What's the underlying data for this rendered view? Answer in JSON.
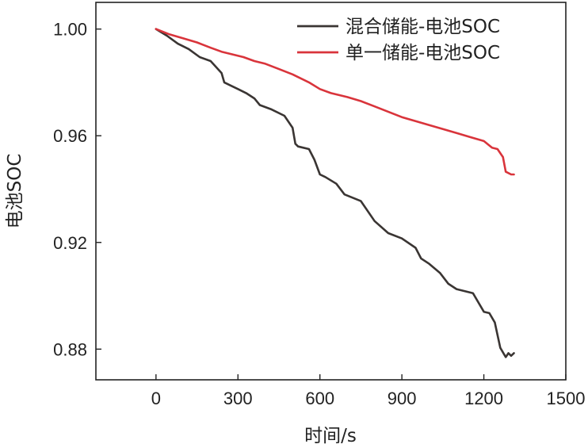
{
  "chart_data": {
    "type": "line",
    "title": "",
    "xlabel": "时间/s",
    "ylabel": "电池SOC",
    "xlim": [
      -220,
      1500
    ],
    "ylim": [
      0.8685,
      1.01
    ],
    "x_ticks": [
      0,
      300,
      600,
      900,
      1200,
      1500
    ],
    "x_tick_labels": [
      "0",
      "300",
      "600",
      "900",
      "1200",
      "1500"
    ],
    "y_ticks": [
      0.88,
      0.92,
      0.96,
      1.0
    ],
    "y_tick_labels": [
      "0.88",
      "0.92",
      "0.96",
      "1.00"
    ],
    "grid": false,
    "legend_position": "top-right",
    "series": [
      {
        "name": "混合储能-电池SOC",
        "color": "#3a3533",
        "x": [
          0,
          40,
          80,
          120,
          160,
          200,
          240,
          250,
          270,
          300,
          330,
          360,
          380,
          420,
          470,
          500,
          510,
          520,
          560,
          580,
          600,
          620,
          660,
          690,
          750,
          800,
          850,
          900,
          950,
          970,
          1000,
          1040,
          1070,
          1100,
          1160,
          1200,
          1220,
          1240,
          1260,
          1280,
          1290,
          1300,
          1310
        ],
        "y": [
          1.0,
          0.9975,
          0.9945,
          0.9925,
          0.9895,
          0.988,
          0.9835,
          0.98,
          0.979,
          0.9775,
          0.976,
          0.974,
          0.9715,
          0.97,
          0.9675,
          0.963,
          0.957,
          0.956,
          0.955,
          0.951,
          0.9455,
          0.9445,
          0.942,
          0.938,
          0.9355,
          0.928,
          0.9235,
          0.9215,
          0.918,
          0.914,
          0.912,
          0.9085,
          0.9045,
          0.9025,
          0.901,
          0.894,
          0.8935,
          0.89,
          0.8805,
          0.877,
          0.8785,
          0.8775,
          0.8785
        ]
      },
      {
        "name": "单一储能-电池SOC",
        "color": "#d9343b",
        "x": [
          0,
          50,
          100,
          150,
          200,
          240,
          280,
          320,
          360,
          400,
          450,
          500,
          520,
          560,
          600,
          640,
          700,
          750,
          800,
          850,
          900,
          950,
          1000,
          1050,
          1100,
          1150,
          1200,
          1230,
          1250,
          1270,
          1280,
          1300,
          1310
        ],
        "y": [
          1.0,
          0.998,
          0.9965,
          0.995,
          0.993,
          0.9915,
          0.9905,
          0.9895,
          0.988,
          0.987,
          0.985,
          0.983,
          0.982,
          0.98,
          0.9775,
          0.976,
          0.9745,
          0.973,
          0.971,
          0.969,
          0.967,
          0.9655,
          0.964,
          0.9625,
          0.961,
          0.9595,
          0.958,
          0.9555,
          0.955,
          0.952,
          0.9465,
          0.9455,
          0.9455
        ]
      }
    ]
  }
}
